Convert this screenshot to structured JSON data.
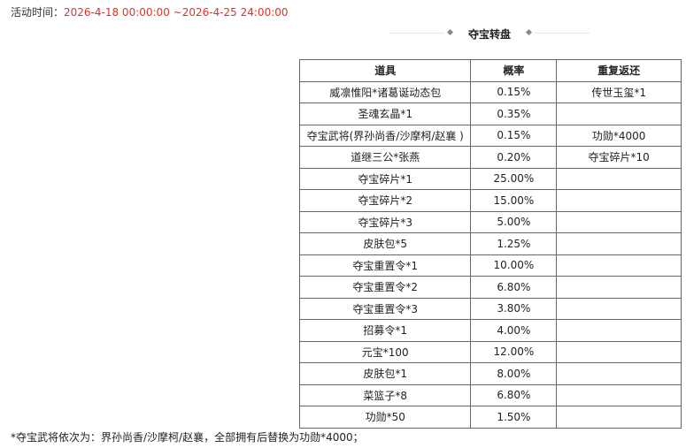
{
  "header": {
    "label": "活动时间：",
    "period": "2026-4-18 00:00:00 ~2026-4-25 24:00:00"
  },
  "title": "夺宝转盘",
  "table": {
    "columns": [
      "道具",
      "概率",
      "重复返还"
    ],
    "rows": [
      {
        "item": "威凛惟阳*诸葛诞动态包",
        "rate": "0.15%",
        "return": "传世玉玺*1"
      },
      {
        "item": "圣魂玄晶*1",
        "rate": "0.35%"
      },
      {
        "item": "夺宝武将(界孙尚香/沙摩柯/赵襄 )",
        "rate": "0.15%",
        "return": "功勋*4000"
      },
      {
        "item": "道继三公*张燕",
        "rate": "0.20%",
        "return": "夺宝碎片*10"
      },
      {
        "item": "夺宝碎片*1",
        "rate": "25.00%"
      },
      {
        "item": "夺宝碎片*2",
        "rate": "15.00%"
      },
      {
        "item": "夺宝碎片*3",
        "rate": "5.00%"
      },
      {
        "item": "皮肤包*5",
        "rate": "1.25%"
      },
      {
        "item": "夺宝重置令*1",
        "rate": "10.00%"
      },
      {
        "item": "夺宝重置令*2",
        "rate": "6.80%"
      },
      {
        "item": "夺宝重置令*3",
        "rate": "3.80%"
      },
      {
        "item": "招募令*1",
        "rate": "4.00%"
      },
      {
        "item": "元宝*100",
        "rate": "12.00%"
      },
      {
        "item": "皮肤包*1",
        "rate": "8.00%"
      },
      {
        "item": "菜篮子*8",
        "rate": "6.80%"
      },
      {
        "item": "功勋*50",
        "rate": "1.50%"
      }
    ]
  },
  "note": "*夺宝武将依次为：界孙尚香/沙摩柯/赵襄，全部拥有后替换为功勋*4000；"
}
